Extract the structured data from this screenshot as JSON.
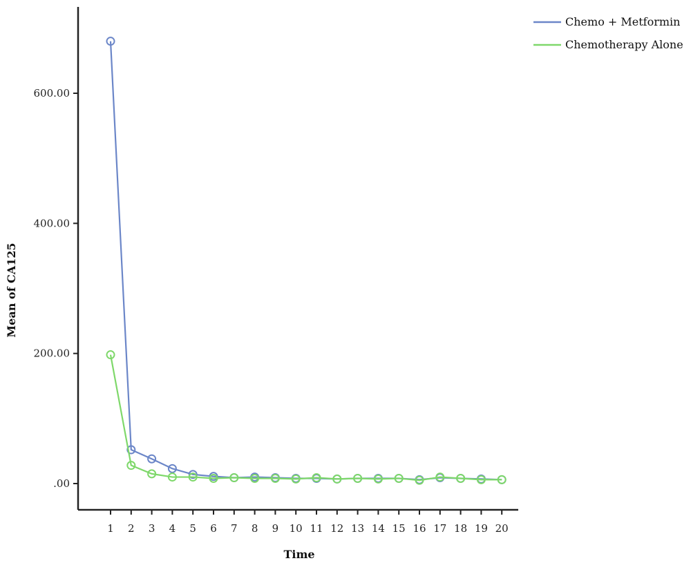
{
  "chart_data": {
    "type": "line",
    "title": "",
    "xlabel": "Time",
    "ylabel": "Mean of CA125",
    "x": [
      1,
      2,
      3,
      4,
      5,
      6,
      7,
      8,
      9,
      10,
      11,
      12,
      13,
      14,
      15,
      16,
      17,
      18,
      19,
      20
    ],
    "ylim": [
      -40,
      730
    ],
    "yticks": [
      0,
      200,
      400,
      600
    ],
    "ytick_labels": [
      ".00",
      "200.00",
      "400.00",
      "600.00"
    ],
    "grid": false,
    "legend_position": "top-right",
    "series": [
      {
        "name": "Chemo + Metformin",
        "color": "#6b86c8",
        "values": [
          680,
          52,
          38,
          23,
          14,
          11,
          9,
          10,
          9,
          8,
          8,
          7,
          8,
          8,
          8,
          6,
          9,
          8,
          7,
          6
        ]
      },
      {
        "name": "Chemotherapy Alone",
        "color": "#7ed86a",
        "values": [
          198,
          28,
          15,
          10,
          10,
          8,
          9,
          8,
          8,
          7,
          9,
          7,
          8,
          7,
          8,
          5,
          10,
          8,
          6,
          6
        ]
      }
    ]
  }
}
